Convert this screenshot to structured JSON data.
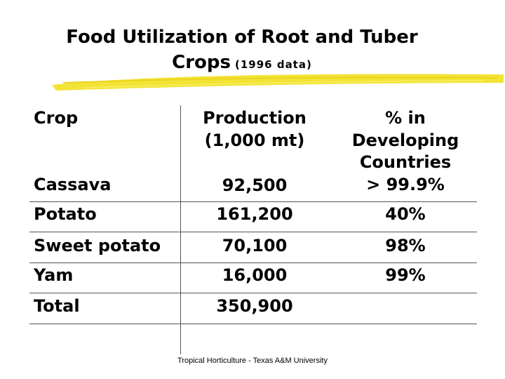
{
  "title": {
    "line1": "Food Utilization of Root and Tuber",
    "line2": "Crops",
    "sub": "(1996 data)"
  },
  "header": {
    "crop": "Crop",
    "production": [
      "Production",
      "(1,000 mt)"
    ],
    "percent": [
      "% in",
      "Developing",
      "Countries"
    ]
  },
  "rows": [
    {
      "crop": "Cassava",
      "production": "92,500",
      "percent": "> 99.9%"
    },
    {
      "crop": "Potato",
      "production": "161,200",
      "percent": "40%"
    },
    {
      "crop": "Sweet potato",
      "production": "70,100",
      "percent": "98%"
    },
    {
      "crop": "Yam",
      "production": "16,000",
      "percent": "99%"
    },
    {
      "crop": "Total",
      "production": "350,900",
      "percent": ""
    }
  ],
  "footer": "Tropical Horticulture - Texas A&M University",
  "colors": {
    "accent": "#f2e22a"
  }
}
